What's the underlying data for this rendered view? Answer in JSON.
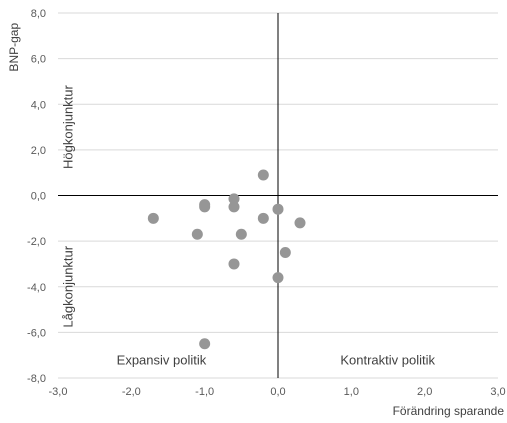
{
  "chart_data": {
    "type": "scatter",
    "xlabel": "Förändring sparande",
    "ylabel": "BNP-gap",
    "xlim": [
      -3,
      3
    ],
    "ylim": [
      -8,
      8
    ],
    "x_ticks": [
      "-3,0",
      "-2,0",
      "-1,0",
      "0,0",
      "1,0",
      "2,0",
      "3,0"
    ],
    "y_ticks": [
      "8,0",
      "6,0",
      "4,0",
      "2,0",
      "0,0",
      "-2,0",
      "-4,0",
      "-6,0",
      "-8,0"
    ],
    "grid": "horizontal",
    "marker_color": "#969696",
    "series": [
      {
        "points": [
          {
            "x": -1.7,
            "y": -1.0
          },
          {
            "x": -1.1,
            "y": -1.7
          },
          {
            "x": -1.0,
            "y": -0.4
          },
          {
            "x": -1.0,
            "y": -0.5
          },
          {
            "x": -1.0,
            "y": -6.5
          },
          {
            "x": -0.6,
            "y": -0.15
          },
          {
            "x": -0.6,
            "y": -0.5
          },
          {
            "x": -0.6,
            "y": -3.0
          },
          {
            "x": -0.5,
            "y": -1.7
          },
          {
            "x": -0.2,
            "y": 0.9
          },
          {
            "x": -0.2,
            "y": -1.0
          },
          {
            "x": 0.0,
            "y": -0.6
          },
          {
            "x": 0.0,
            "y": -3.6
          },
          {
            "x": 0.1,
            "y": -2.5
          },
          {
            "x": 0.3,
            "y": -1.2
          }
        ]
      }
    ],
    "annotations": {
      "upper_left": "Högkonjunktur",
      "lower_left": "Lågkonjunktur",
      "bottom_left": "Expansiv politik",
      "bottom_right": "Kontraktiv politik"
    }
  }
}
